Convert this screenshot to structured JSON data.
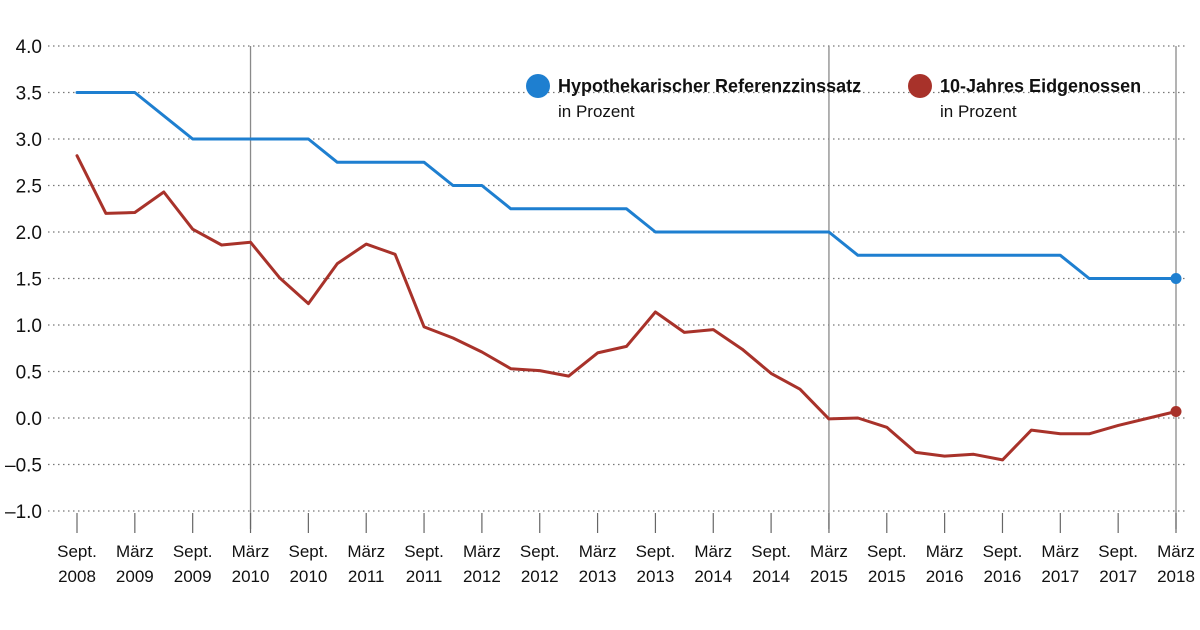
{
  "chart_data": {
    "type": "line",
    "title": "",
    "xlabel": "",
    "ylabel": "",
    "ylim": [
      -1.0,
      4.0
    ],
    "yticks": [
      "4.0",
      "3.5",
      "3.0",
      "2.5",
      "2.0",
      "1.5",
      "1.0",
      "0.5",
      "0.0",
      "–0.5",
      "–1.0"
    ],
    "ytick_values": [
      4.0,
      3.5,
      3.0,
      2.5,
      2.0,
      1.5,
      1.0,
      0.5,
      0.0,
      -0.5,
      -1.0
    ],
    "categories": [
      {
        "month": "Sept.",
        "year": "2008"
      },
      {
        "month": "März",
        "year": "2009"
      },
      {
        "month": "Sept.",
        "year": "2009"
      },
      {
        "month": "März",
        "year": "2010"
      },
      {
        "month": "Sept.",
        "year": "2010"
      },
      {
        "month": "März",
        "year": "2011"
      },
      {
        "month": "Sept.",
        "year": "2011"
      },
      {
        "month": "März",
        "year": "2012"
      },
      {
        "month": "Sept.",
        "year": "2012"
      },
      {
        "month": "März",
        "year": "2013"
      },
      {
        "month": "Sept.",
        "year": "2013"
      },
      {
        "month": "März",
        "year": "2014"
      },
      {
        "month": "Sept.",
        "year": "2014"
      },
      {
        "month": "März",
        "year": "2015"
      },
      {
        "month": "Sept.",
        "year": "2015"
      },
      {
        "month": "März",
        "year": "2016"
      },
      {
        "month": "Sept.",
        "year": "2016"
      },
      {
        "month": "März",
        "year": "2017"
      },
      {
        "month": "Sept.",
        "year": "2017"
      },
      {
        "month": "März",
        "year": "2018"
      }
    ],
    "highlight_periods": [
      3,
      13,
      19
    ],
    "series": [
      {
        "name": "Hypothekarischer Referenzzinssatz",
        "unit": "in Prozent",
        "color": "#1e7fd0",
        "points": [
          [
            0,
            3.5
          ],
          [
            1,
            3.5
          ],
          [
            2,
            3.0
          ],
          [
            3,
            3.0
          ],
          [
            4,
            3.0
          ],
          [
            4.5,
            2.75
          ],
          [
            6,
            2.75
          ],
          [
            6.5,
            2.5
          ],
          [
            7,
            2.5
          ],
          [
            7.5,
            2.25
          ],
          [
            9.5,
            2.25
          ],
          [
            10,
            2.0
          ],
          [
            13,
            2.0
          ],
          [
            13.5,
            1.75
          ],
          [
            17,
            1.75
          ],
          [
            17.5,
            1.5
          ],
          [
            19,
            1.5
          ]
        ]
      },
      {
        "name": "10-Jahres Eidgenossen",
        "unit": "in Prozent",
        "color": "#a8322a",
        "points": [
          [
            0,
            2.82
          ],
          [
            0.5,
            2.2
          ],
          [
            1,
            2.21
          ],
          [
            1.5,
            2.43
          ],
          [
            2,
            2.03
          ],
          [
            2.5,
            1.86
          ],
          [
            3,
            1.89
          ],
          [
            3.5,
            1.51
          ],
          [
            4,
            1.23
          ],
          [
            4.5,
            1.66
          ],
          [
            5,
            1.87
          ],
          [
            5.5,
            1.76
          ],
          [
            6,
            0.98
          ],
          [
            6.5,
            0.86
          ],
          [
            7,
            0.71
          ],
          [
            7.5,
            0.53
          ],
          [
            8,
            0.51
          ],
          [
            8.5,
            0.45
          ],
          [
            9,
            0.7
          ],
          [
            9.5,
            0.77
          ],
          [
            10,
            1.14
          ],
          [
            10.5,
            0.92
          ],
          [
            11,
            0.95
          ],
          [
            11.5,
            0.74
          ],
          [
            12,
            0.48
          ],
          [
            12.5,
            0.31
          ],
          [
            13,
            -0.01
          ],
          [
            13.5,
            0.0
          ],
          [
            14,
            -0.1
          ],
          [
            14.5,
            -0.37
          ],
          [
            15,
            -0.41
          ],
          [
            15.5,
            -0.39
          ],
          [
            16,
            -0.45
          ],
          [
            16.5,
            -0.13
          ],
          [
            17,
            -0.17
          ],
          [
            17.5,
            -0.17
          ],
          [
            18,
            -0.08
          ],
          [
            19,
            0.07
          ]
        ]
      }
    ],
    "legend_position": "top-right"
  }
}
